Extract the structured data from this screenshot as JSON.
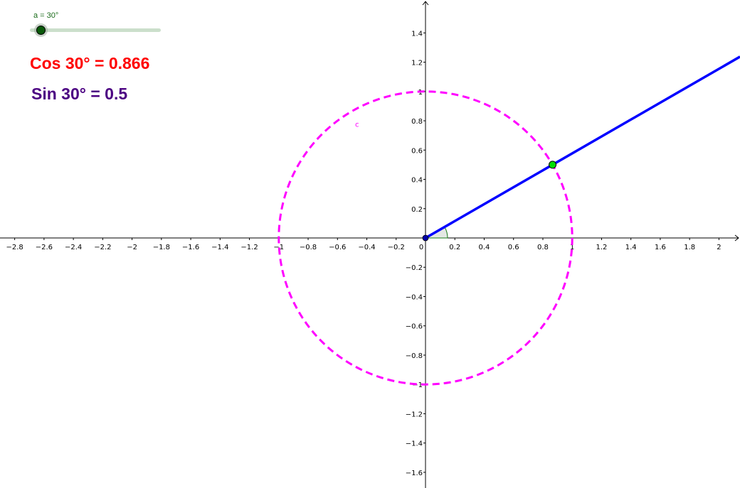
{
  "slider": {
    "label": "a = 30°",
    "value_deg": 30,
    "color": "#0a5a0a"
  },
  "texts": {
    "cos": "Cos 30° = 0.866",
    "sin": "Sin 30° = 0.5",
    "cos_color": "#ff0000",
    "sin_color": "#4b0082"
  },
  "diagram": {
    "angle_deg": 30,
    "circle": {
      "label": "c",
      "radius": 1,
      "color": "#ff00ff",
      "style": "dashed"
    },
    "ray": {
      "color": "#0000ff"
    },
    "point": {
      "x": 0.866,
      "y": 0.5,
      "color": "#00dd00"
    },
    "origin_point_color": "#0000aa",
    "x_tick_labels": [
      "−2.8",
      "−2.6",
      "−2.4",
      "−2.2",
      "−2",
      "−1.8",
      "−1.6",
      "−1.4",
      "−1.2",
      "−1",
      "−0.8",
      "−0.6",
      "−0.4",
      "−0.2",
      "0",
      "0.2",
      "0.4",
      "0.6",
      "0.8",
      "1",
      "1.2",
      "1.4",
      "1.6",
      "1.8",
      "2"
    ],
    "y_tick_labels": [
      "1.4",
      "1.2",
      "1",
      "0.8",
      "0.6",
      "0.4",
      "0.2",
      "−0.2",
      "−0.4",
      "−0.6",
      "−0.8",
      "−1",
      "−1.2",
      "−1.4",
      "−1.6"
    ]
  }
}
